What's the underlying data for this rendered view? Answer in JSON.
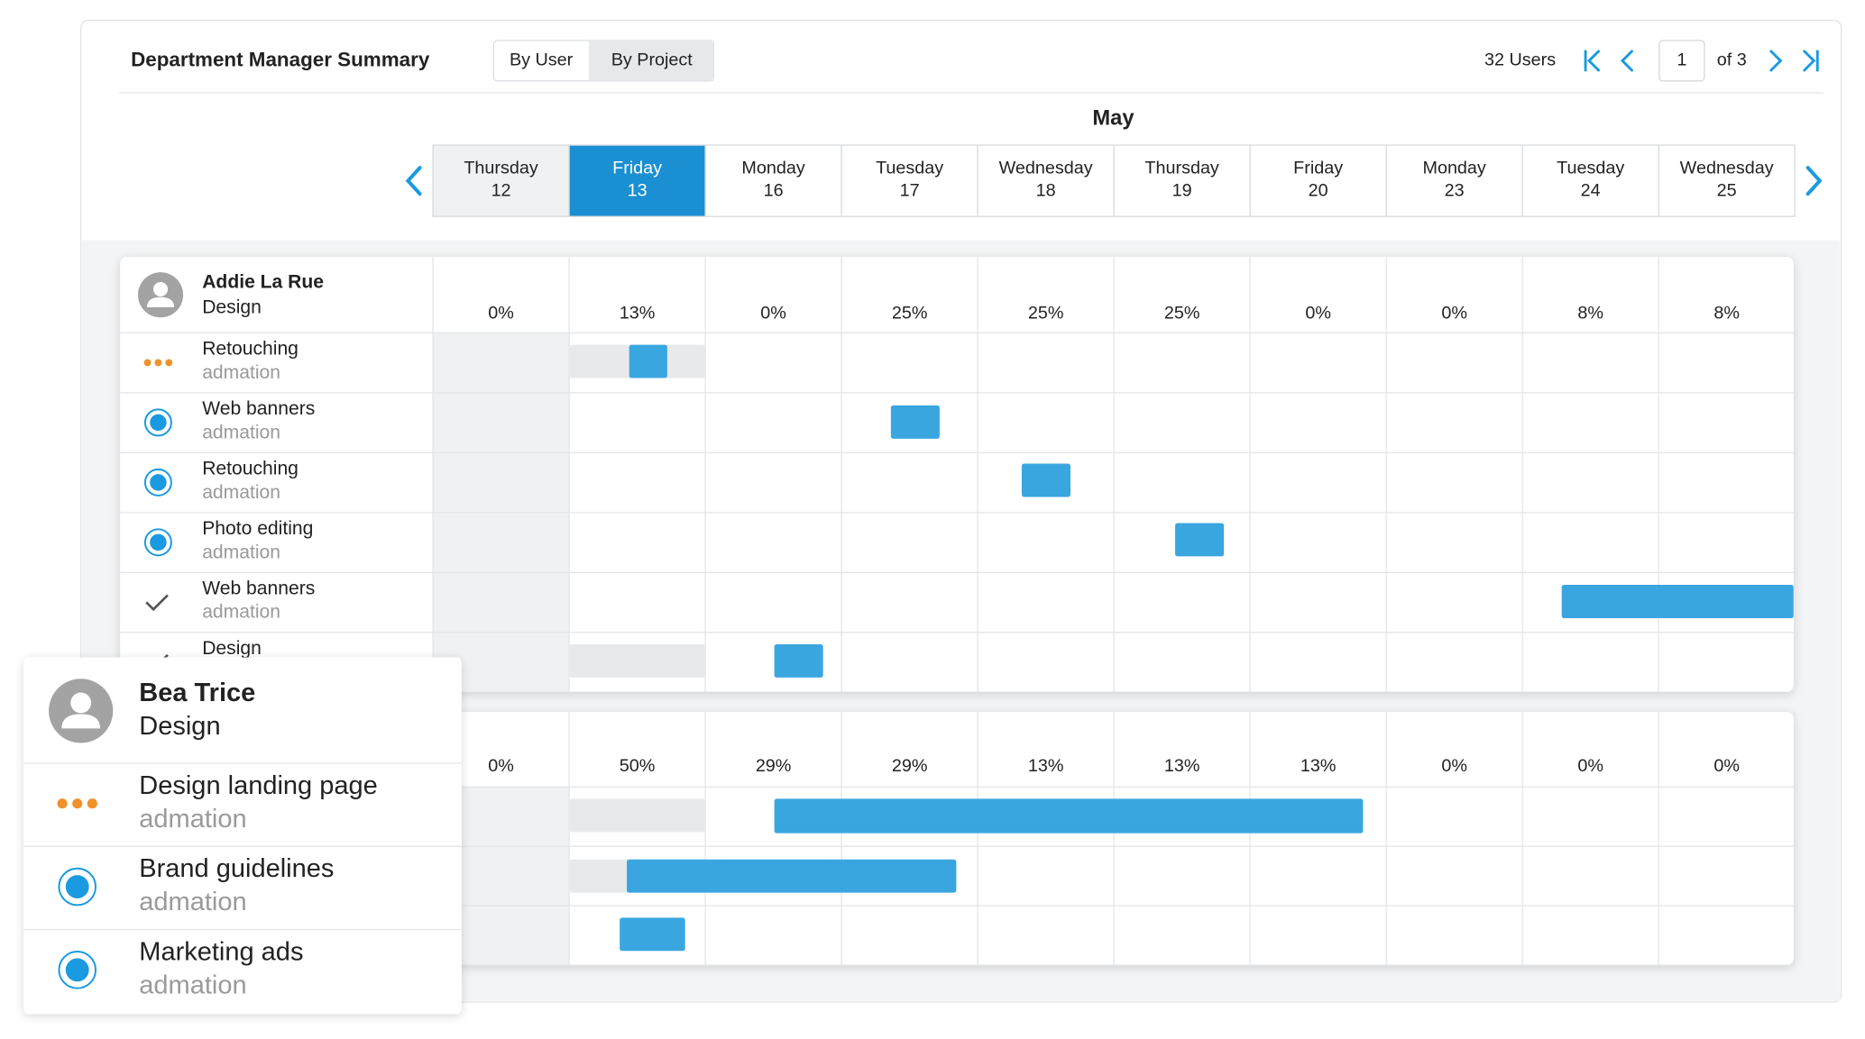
{
  "header": {
    "title": "Department Manager Summary",
    "toggle": [
      "By User",
      "By Project"
    ],
    "user_count": "32 Users",
    "page": "1",
    "page_of": "of 3"
  },
  "calendar": {
    "month": "May",
    "days": [
      {
        "weekday": "Thursday",
        "day": 12
      },
      {
        "weekday": "Friday",
        "day": 13
      },
      {
        "weekday": "Monday",
        "day": 16
      },
      {
        "weekday": "Tuesday",
        "day": 17
      },
      {
        "weekday": "Wednesday",
        "day": 18
      },
      {
        "weekday": "Thursday",
        "day": 19
      },
      {
        "weekday": "Friday",
        "day": 20
      },
      {
        "weekday": "Monday",
        "day": 23
      },
      {
        "weekday": "Tuesday",
        "day": 24
      },
      {
        "weekday": "Wednesday",
        "day": 25
      }
    ]
  },
  "users": [
    {
      "name": "Addie La Rue",
      "department": "Design",
      "utilization": [
        "0%",
        "13%",
        "0%",
        "25%",
        "25%",
        "25%",
        "0%",
        "0%",
        "8%",
        "8%"
      ],
      "tasks": [
        {
          "name": "Retouching",
          "client": "admation"
        },
        {
          "name": "Web banners",
          "client": "admation"
        },
        {
          "name": "Retouching",
          "client": "admation"
        },
        {
          "name": "Photo editing",
          "client": "admation"
        },
        {
          "name": "Web banners",
          "client": "admation"
        },
        {
          "name": "Design"
        }
      ]
    },
    {
      "name": "Bea Trice",
      "department": "Design",
      "utilization": [
        "0%",
        "50%",
        "29%",
        "29%",
        "13%",
        "13%",
        "13%",
        "0%",
        "0%",
        "0%"
      ],
      "tasks": [
        {
          "name": "Design landing page",
          "client": "admation"
        },
        {
          "name": "Brand guidelines",
          "client": "admation"
        },
        {
          "name": "Marketing ads",
          "client": "admation"
        }
      ]
    }
  ]
}
